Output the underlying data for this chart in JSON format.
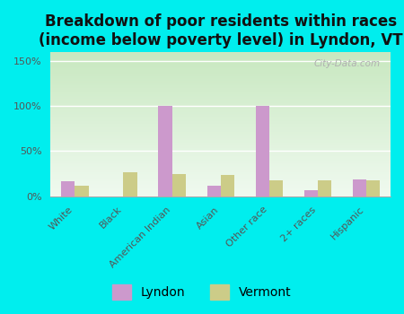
{
  "title": "Breakdown of poor residents within races\n(income below poverty level) in Lyndon, VT",
  "categories": [
    "White",
    "Black",
    "American Indian",
    "Asian",
    "Other race",
    "2+ races",
    "Hispanic"
  ],
  "lyndon_values": [
    17,
    0,
    100,
    12,
    100,
    7,
    19
  ],
  "vermont_values": [
    12,
    27,
    25,
    24,
    18,
    18,
    18
  ],
  "lyndon_color": "#cc99cc",
  "vermont_color": "#cccc88",
  "background_color": "#00eeee",
  "ylim": [
    0,
    160
  ],
  "yticks": [
    0,
    50,
    100,
    150
  ],
  "ytick_labels": [
    "0%",
    "50%",
    "100%",
    "150%"
  ],
  "title_fontsize": 12,
  "tick_fontsize": 8,
  "legend_fontsize": 10,
  "watermark": "City-Data.com",
  "bar_width": 0.28
}
